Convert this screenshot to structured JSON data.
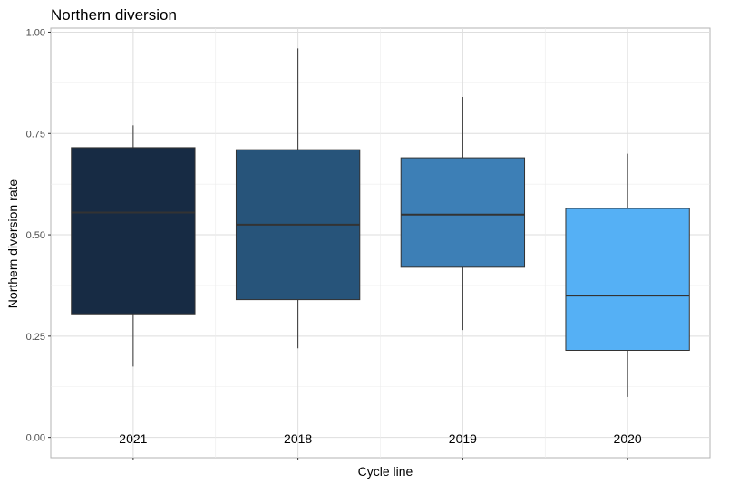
{
  "chart_data": {
    "type": "boxplot",
    "title": "Northern diversion",
    "xlabel": "Cycle line",
    "ylabel": "Northern diversion rate",
    "ylim": [
      -0.05,
      1.01
    ],
    "yticks": [
      0.0,
      0.25,
      0.5,
      0.75,
      1.0
    ],
    "ytick_labels": [
      "0.00",
      "0.25",
      "0.50",
      "0.75",
      "1.00"
    ],
    "grid": true,
    "categories": [
      "2021",
      "2018",
      "2019",
      "2020"
    ],
    "boxes": [
      {
        "category": "2021",
        "min": 0.175,
        "q1": 0.305,
        "median": 0.555,
        "q3": 0.715,
        "max": 0.77,
        "color": "#172b44"
      },
      {
        "category": "2018",
        "min": 0.22,
        "q1": 0.34,
        "median": 0.525,
        "q3": 0.71,
        "max": 0.96,
        "color": "#27547a"
      },
      {
        "category": "2019",
        "min": 0.265,
        "q1": 0.42,
        "median": 0.55,
        "q3": 0.69,
        "max": 0.84,
        "color": "#3d7fb6"
      },
      {
        "category": "2020",
        "min": 0.1,
        "q1": 0.215,
        "median": 0.35,
        "q3": 0.565,
        "max": 0.7,
        "color": "#55b0f5"
      }
    ]
  }
}
